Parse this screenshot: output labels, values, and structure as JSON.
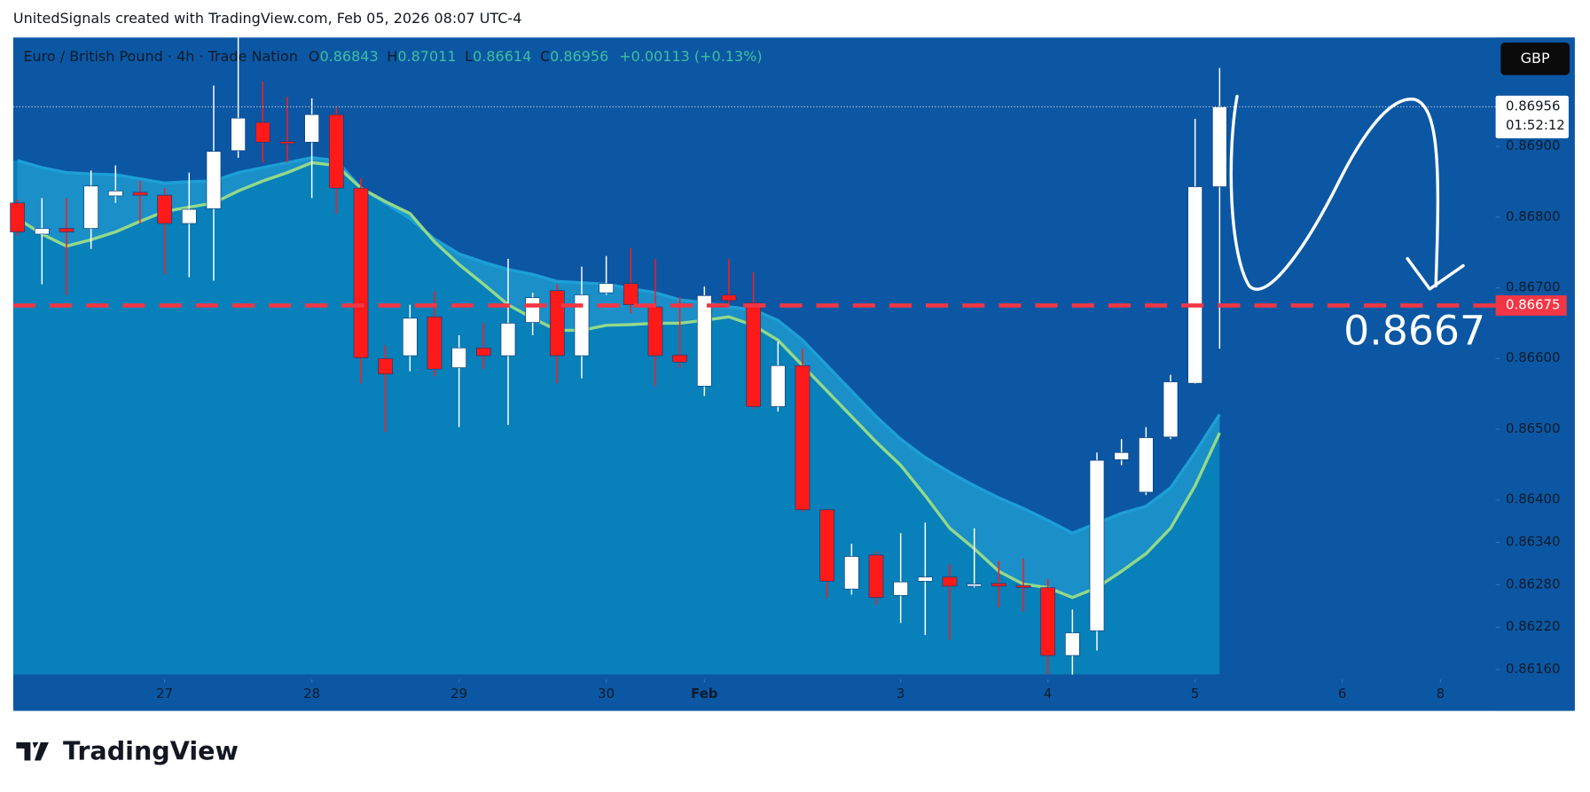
{
  "header": {
    "text": "UnitedSignals created with TradingView.com, Feb 05, 2026 08:07 UTC-4"
  },
  "footer": {
    "logo": "TradingView"
  },
  "chart_data": {
    "type": "candlestick",
    "symbol": "Euro / British Pound · 4h · Trade Nation",
    "legend_labels": [
      "O",
      "H",
      "L",
      "C"
    ],
    "change": "+0.00113 (+0.13%)",
    "currency": "GBP",
    "countdown": "01:52:12",
    "annotation": "0.8667",
    "hline": 0.86675,
    "up_color": "#ffffff",
    "down_color": "#ff1a1a",
    "hline_color": "#f23645",
    "open": [
      0.8682,
      0.86776,
      0.86784,
      0.86784,
      0.8683,
      0.86835,
      0.86831,
      0.86791,
      0.86812,
      0.86894,
      0.86934,
      0.86907,
      0.86906,
      0.86945,
      0.86841,
      0.866,
      0.86604,
      0.86659,
      0.86587,
      0.86615,
      0.86604,
      0.86651,
      0.86696,
      0.86604,
      0.86693,
      0.86706,
      0.86673,
      0.86605,
      0.86561,
      0.8669,
      0.86679,
      0.86532,
      0.8659,
      0.86386,
      0.86274,
      0.86322,
      0.86265,
      0.86285,
      0.86291,
      0.86278,
      0.86282,
      0.86279,
      0.86276,
      0.8618,
      0.86215,
      0.86457,
      0.86411,
      0.86489,
      0.86565,
      0.86843
    ],
    "high": [
      0.86825,
      0.86827,
      0.86827,
      0.86866,
      0.86873,
      0.86851,
      0.86841,
      0.86863,
      0.86986,
      0.87054,
      0.86992,
      0.8697,
      0.86968,
      0.86956,
      0.86855,
      0.86618,
      0.86676,
      0.86695,
      0.86633,
      0.8665,
      0.86741,
      0.86693,
      0.86705,
      0.8673,
      0.86745,
      0.86756,
      0.86741,
      0.86687,
      0.86702,
      0.86741,
      0.86722,
      0.86624,
      0.86614,
      0.86388,
      0.86338,
      0.86327,
      0.86353,
      0.86368,
      0.86309,
      0.8636,
      0.86314,
      0.86317,
      0.86288,
      0.86245,
      0.86467,
      0.86486,
      0.86503,
      0.86577,
      0.86939,
      0.87011
    ],
    "low": [
      0.86774,
      0.86705,
      0.8669,
      0.86755,
      0.8682,
      0.86791,
      0.86719,
      0.86715,
      0.8671,
      0.86884,
      0.86877,
      0.86877,
      0.86827,
      0.86805,
      0.86565,
      0.86496,
      0.86582,
      0.86575,
      0.86503,
      0.86585,
      0.86506,
      0.86633,
      0.86565,
      0.86572,
      0.8669,
      0.86664,
      0.86561,
      0.86587,
      0.86547,
      0.86673,
      0.86529,
      0.86525,
      0.86383,
      0.86262,
      0.86266,
      0.86252,
      0.86226,
      0.86209,
      0.86202,
      0.86276,
      0.86248,
      0.86242,
      0.86153,
      0.86153,
      0.86187,
      0.86449,
      0.86407,
      0.86486,
      0.86564,
      0.86614
    ],
    "close": [
      0.86779,
      0.86784,
      0.86779,
      0.86844,
      0.86837,
      0.86831,
      0.86791,
      0.86811,
      0.86893,
      0.8694,
      0.86906,
      0.86904,
      0.86945,
      0.86841,
      0.86601,
      0.86578,
      0.86657,
      0.86585,
      0.86615,
      0.86604,
      0.8665,
      0.86686,
      0.86604,
      0.8669,
      0.86706,
      0.86676,
      0.86604,
      0.86595,
      0.86689,
      0.86682,
      0.86532,
      0.8659,
      0.86386,
      0.86285,
      0.8632,
      0.86262,
      0.86284,
      0.86291,
      0.86278,
      0.86281,
      0.86278,
      0.86276,
      0.8618,
      0.86212,
      0.86456,
      0.86467,
      0.86488,
      0.86567,
      0.86843,
      0.86956
    ],
    "lines": [
      {
        "color": "#1d9fd6",
        "values": [
          0.8688,
          0.8687,
          0.86863,
          0.86861,
          0.8686,
          0.86854,
          0.86848,
          0.8685,
          0.86851,
          0.86863,
          0.8687,
          0.86877,
          0.86884,
          0.8688,
          0.86841,
          0.8682,
          0.86798,
          0.86769,
          0.86748,
          0.86736,
          0.86726,
          0.86719,
          0.86709,
          0.86707,
          0.86705,
          0.86699,
          0.86693,
          0.86683,
          0.86679,
          0.86673,
          0.86669,
          0.86654,
          0.86626,
          0.8659,
          0.86554,
          0.86518,
          0.86486,
          0.8646,
          0.86439,
          0.8642,
          0.86403,
          0.86388,
          0.86371,
          0.86353,
          0.86367,
          0.86381,
          0.86391,
          0.86417,
          0.86467,
          0.86521
        ]
      },
      {
        "color": "#93d98a",
        "values": [
          0.86798,
          0.86776,
          0.86759,
          0.86768,
          0.86779,
          0.86794,
          0.86808,
          0.86814,
          0.8682,
          0.86837,
          0.86851,
          0.86863,
          0.86877,
          0.86873,
          0.86841,
          0.86822,
          0.86805,
          0.86765,
          0.86733,
          0.86705,
          0.86676,
          0.86657,
          0.8664,
          0.8664,
          0.86647,
          0.86648,
          0.8665,
          0.8665,
          0.86654,
          0.86659,
          0.86647,
          0.86626,
          0.8659,
          0.86554,
          0.86518,
          0.86482,
          0.86449,
          0.86406,
          0.8636,
          0.86331,
          0.86299,
          0.86281,
          0.86276,
          0.86262,
          0.86276,
          0.86299,
          0.86324,
          0.8636,
          0.8642,
          0.86495
        ]
      }
    ],
    "ylim": [
      0.86149,
      0.87054
    ],
    "yticks": [
      {
        "value": 0.8616,
        "label": "0.86160"
      },
      {
        "value": 0.8622,
        "label": "0.86220"
      },
      {
        "value": 0.8628,
        "label": "0.86280"
      },
      {
        "value": 0.8634,
        "label": "0.86340"
      },
      {
        "value": 0.864,
        "label": "0.86400"
      },
      {
        "value": 0.865,
        "label": "0.86500"
      },
      {
        "value": 0.866,
        "label": "0.86600"
      },
      {
        "value": 0.867,
        "label": "0.86700"
      },
      {
        "value": 0.868,
        "label": "0.86800"
      },
      {
        "value": 0.869,
        "label": "0.86900"
      }
    ],
    "xlim": [
      -0.17,
      60.25
    ],
    "xticks": [
      {
        "value": 6,
        "label": "27"
      },
      {
        "value": 12,
        "label": "28"
      },
      {
        "value": 18,
        "label": "29"
      },
      {
        "value": 24,
        "label": "30"
      },
      {
        "value": 28,
        "label": "Feb"
      },
      {
        "value": 36,
        "label": "3"
      },
      {
        "value": 42,
        "label": "4"
      },
      {
        "value": 48,
        "label": "5"
      },
      {
        "value": 54,
        "label": "6"
      },
      {
        "value": 58,
        "label": "8"
      }
    ]
  }
}
